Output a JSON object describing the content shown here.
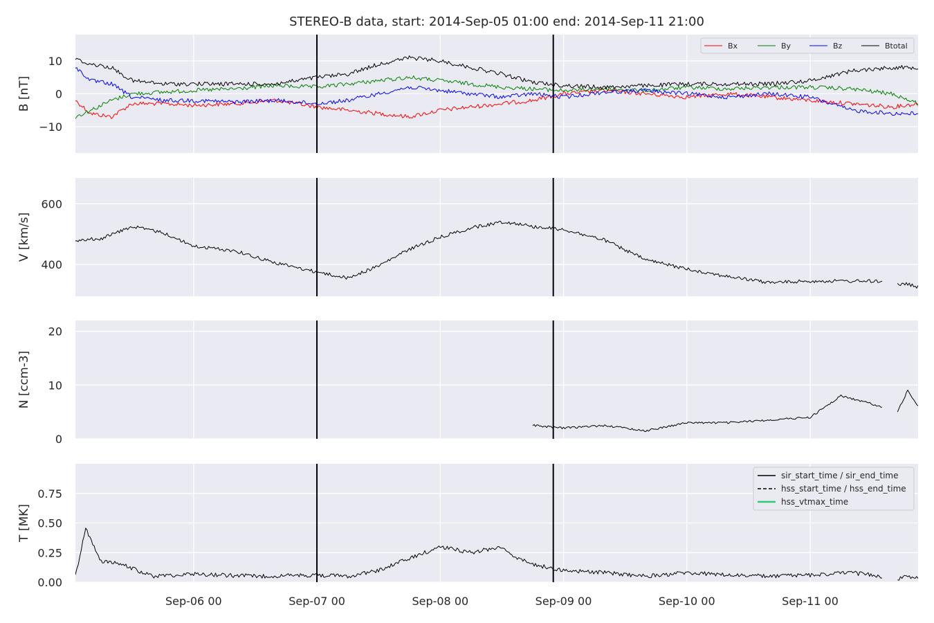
{
  "title": "STEREO-B data, start: 2014-Sep-05 01:00  end: 2014-Sep-11 21:00",
  "x_tick_labels": [
    "Sep-06 00",
    "Sep-07 00",
    "Sep-08 00",
    "Sep-09 00",
    "Sep-10 00",
    "Sep-11 00"
  ],
  "colors": {
    "panel_bg": "#eaeaf2",
    "grid": "#ffffff",
    "Bx": "#ff0000",
    "By": "#008000",
    "Bz": "#0000ff",
    "Btotal": "#000000",
    "event_lines": "#000000",
    "hss_vtmax": "#2ecc71"
  },
  "legend_top": {
    "placement": "top-right",
    "entries": [
      "Bx",
      "By",
      "Bz",
      "Btotal"
    ]
  },
  "legend_bottom": {
    "placement": "top-right",
    "entries": [
      {
        "label": "sir_start_time / sir_end_time",
        "style": "solid"
      },
      {
        "label": "hss_start_time / hss_end_time",
        "style": "dashed"
      },
      {
        "label": "hss_vtmax_time",
        "style": "solid-green"
      }
    ]
  },
  "chart_data": [
    {
      "type": "line",
      "ylabel": "B [nT]",
      "x_range": [
        "2014-09-05 01:00",
        "2014-09-11 21:00"
      ],
      "ylim": [
        -18,
        18
      ],
      "yticks": [
        -10,
        0,
        10
      ],
      "ytick_labels": [
        "−10",
        "0",
        "10"
      ],
      "grid": true,
      "vlines": [
        "2014-09-07 00:00",
        "2014-09-08 22:00"
      ],
      "series": [
        {
          "name": "Bx",
          "x": [
            "2014-09-05 01:00",
            "2014-09-05 04:00",
            "2014-09-05 08:00",
            "2014-09-05 12:00",
            "2014-09-05 18:00",
            "2014-09-06 00:00",
            "2014-09-06 08:00",
            "2014-09-06 16:00",
            "2014-09-07 00:00",
            "2014-09-07 06:00",
            "2014-09-07 12:00",
            "2014-09-07 18:00",
            "2014-09-08 00:00",
            "2014-09-08 06:00",
            "2014-09-08 12:00",
            "2014-09-08 18:00",
            "2014-09-09 00:00",
            "2014-09-09 08:00",
            "2014-09-09 16:00",
            "2014-09-10 00:00",
            "2014-09-10 08:00",
            "2014-09-10 16:00",
            "2014-09-11 00:00",
            "2014-09-11 08:00",
            "2014-09-11 16:00",
            "2014-09-11 21:00"
          ],
          "values": [
            -2,
            -6,
            -7,
            -3,
            -3,
            -3.5,
            -3,
            -2,
            -4,
            -5,
            -6,
            -7,
            -5,
            -4,
            -3,
            -2,
            0,
            1,
            0,
            -1,
            0,
            -1,
            -2,
            -3,
            -4,
            -3
          ]
        },
        {
          "name": "By",
          "x": [
            "2014-09-05 01:00",
            "2014-09-05 04:00",
            "2014-09-05 08:00",
            "2014-09-05 12:00",
            "2014-09-05 18:00",
            "2014-09-06 00:00",
            "2014-09-06 08:00",
            "2014-09-06 16:00",
            "2014-09-07 00:00",
            "2014-09-07 06:00",
            "2014-09-07 12:00",
            "2014-09-07 18:00",
            "2014-09-08 00:00",
            "2014-09-08 06:00",
            "2014-09-08 12:00",
            "2014-09-08 18:00",
            "2014-09-09 00:00",
            "2014-09-09 08:00",
            "2014-09-09 16:00",
            "2014-09-10 00:00",
            "2014-09-10 08:00",
            "2014-09-10 16:00",
            "2014-09-11 00:00",
            "2014-09-11 08:00",
            "2014-09-11 16:00",
            "2014-09-11 21:00"
          ],
          "values": [
            -7,
            -5,
            -2,
            0,
            0.5,
            1,
            1.5,
            2.5,
            2,
            3,
            4,
            5,
            4,
            3,
            2,
            1.5,
            1,
            1.5,
            1,
            2,
            1.5,
            2,
            2,
            1.5,
            0,
            -3
          ]
        },
        {
          "name": "Bz",
          "x": [
            "2014-09-05 01:00",
            "2014-09-05 04:00",
            "2014-09-05 08:00",
            "2014-09-05 12:00",
            "2014-09-05 18:00",
            "2014-09-06 00:00",
            "2014-09-06 08:00",
            "2014-09-06 16:00",
            "2014-09-07 00:00",
            "2014-09-07 06:00",
            "2014-09-07 12:00",
            "2014-09-07 18:00",
            "2014-09-08 00:00",
            "2014-09-08 06:00",
            "2014-09-08 12:00",
            "2014-09-08 18:00",
            "2014-09-09 00:00",
            "2014-09-09 08:00",
            "2014-09-09 16:00",
            "2014-09-10 00:00",
            "2014-09-10 08:00",
            "2014-09-10 16:00",
            "2014-09-11 00:00",
            "2014-09-11 08:00",
            "2014-09-11 16:00",
            "2014-09-11 21:00"
          ],
          "values": [
            8,
            4,
            3,
            -1,
            -2,
            -2,
            -2.5,
            -2,
            -3,
            -2,
            0,
            2,
            1,
            0,
            -1,
            0,
            -1,
            0.5,
            1,
            0,
            -1,
            0,
            -1,
            -5,
            -6,
            -6
          ]
        },
        {
          "name": "Btotal",
          "x": [
            "2014-09-05 01:00",
            "2014-09-05 04:00",
            "2014-09-05 08:00",
            "2014-09-05 12:00",
            "2014-09-05 18:00",
            "2014-09-06 00:00",
            "2014-09-06 08:00",
            "2014-09-06 16:00",
            "2014-09-07 00:00",
            "2014-09-07 06:00",
            "2014-09-07 12:00",
            "2014-09-07 18:00",
            "2014-09-08 00:00",
            "2014-09-08 06:00",
            "2014-09-08 12:00",
            "2014-09-08 18:00",
            "2014-09-09 00:00",
            "2014-09-09 08:00",
            "2014-09-09 16:00",
            "2014-09-10 00:00",
            "2014-09-10 08:00",
            "2014-09-10 16:00",
            "2014-09-11 00:00",
            "2014-09-11 08:00",
            "2014-09-11 16:00",
            "2014-09-11 21:00"
          ],
          "values": [
            10.5,
            9,
            8,
            4,
            3,
            3,
            3,
            3,
            5,
            6,
            9,
            11,
            10,
            8,
            6,
            3.5,
            2.5,
            2,
            2.5,
            3,
            3,
            3,
            4,
            7,
            8,
            8
          ]
        }
      ]
    },
    {
      "type": "line",
      "ylabel": "V [km/s]",
      "x_range": [
        "2014-09-05 01:00",
        "2014-09-11 21:00"
      ],
      "ylim": [
        295,
        685
      ],
      "yticks": [
        400,
        600
      ],
      "ytick_labels": [
        "400",
        "600"
      ],
      "grid": true,
      "vlines": [
        "2014-09-07 00:00",
        "2014-09-08 22:00"
      ],
      "series": [
        {
          "name": "V",
          "x": [
            "2014-09-05 01:00",
            "2014-09-05 06:00",
            "2014-09-05 12:00",
            "2014-09-05 18:00",
            "2014-09-06 00:00",
            "2014-09-06 08:00",
            "2014-09-06 16:00",
            "2014-09-07 00:00",
            "2014-09-07 06:00",
            "2014-09-07 12:00",
            "2014-09-07 18:00",
            "2014-09-08 00:00",
            "2014-09-08 06:00",
            "2014-09-08 12:00",
            "2014-09-08 15:00",
            "2014-09-08 18:00",
            "2014-09-09 00:00",
            "2014-09-09 08:00",
            "2014-09-09 16:00",
            "2014-09-10 00:00",
            "2014-09-10 08:00",
            "2014-09-10 16:00",
            "2014-09-11 00:00",
            "2014-09-11 08:00",
            "2014-09-11 14:00"
          ],
          "values": [
            480,
            485,
            525,
            505,
            460,
            445,
            405,
            375,
            355,
            395,
            450,
            490,
            520,
            540,
            535,
            525,
            515,
            480,
            415,
            385,
            360,
            340,
            345,
            345,
            345
          ]
        },
        {
          "name": "V (tail)",
          "x": [
            "2014-09-11 17:00",
            "2014-09-11 19:00",
            "2014-09-11 21:00"
          ],
          "values": [
            335,
            335,
            325
          ]
        }
      ]
    },
    {
      "type": "line",
      "ylabel": "N [ccm-3]",
      "x_range": [
        "2014-09-05 01:00",
        "2014-09-11 21:00"
      ],
      "ylim": [
        0,
        22
      ],
      "yticks": [
        0,
        10,
        20
      ],
      "ytick_labels": [
        "0",
        "10",
        "20"
      ],
      "grid": true,
      "vlines": [
        "2014-09-07 00:00",
        "2014-09-08 22:00"
      ],
      "series": [
        {
          "name": "N",
          "x": [
            "2014-09-08 18:00",
            "2014-09-09 00:00",
            "2014-09-09 08:00",
            "2014-09-09 16:00",
            "2014-09-10 00:00",
            "2014-09-10 08:00",
            "2014-09-10 16:00",
            "2014-09-11 00:00",
            "2014-09-11 06:00",
            "2014-09-11 14:00"
          ],
          "values": [
            2.5,
            2,
            2.5,
            1.5,
            3,
            3,
            3.5,
            4,
            8,
            6
          ]
        },
        {
          "name": "N (tail)",
          "x": [
            "2014-09-11 17:00",
            "2014-09-11 19:00",
            "2014-09-11 21:00"
          ],
          "values": [
            5,
            9,
            6
          ]
        }
      ]
    },
    {
      "type": "line",
      "ylabel": "T [MK]",
      "x_range": [
        "2014-09-05 01:00",
        "2014-09-11 21:00"
      ],
      "ylim": [
        0,
        1.0
      ],
      "yticks": [
        0.0,
        0.25,
        0.5,
        0.75
      ],
      "ytick_labels": [
        "0.00",
        "0.25",
        "0.50",
        "0.75"
      ],
      "grid": true,
      "vlines": [
        "2014-09-07 00:00",
        "2014-09-08 22:00"
      ],
      "series": [
        {
          "name": "T",
          "x": [
            "2014-09-05 01:00",
            "2014-09-05 03:00",
            "2014-09-05 06:00",
            "2014-09-05 10:00",
            "2014-09-05 16:00",
            "2014-09-06 00:00",
            "2014-09-06 12:00",
            "2014-09-07 00:00",
            "2014-09-07 06:00",
            "2014-09-07 12:00",
            "2014-09-07 18:00",
            "2014-09-08 00:00",
            "2014-09-08 06:00",
            "2014-09-08 12:00",
            "2014-09-08 15:00",
            "2014-09-08 18:00",
            "2014-09-09 00:00",
            "2014-09-09 08:00",
            "2014-09-09 16:00",
            "2014-09-10 00:00",
            "2014-09-10 08:00",
            "2014-09-10 16:00",
            "2014-09-11 00:00",
            "2014-09-11 08:00",
            "2014-09-11 14:00"
          ],
          "values": [
            0.05,
            0.45,
            0.18,
            0.15,
            0.05,
            0.07,
            0.05,
            0.06,
            0.05,
            0.1,
            0.2,
            0.3,
            0.25,
            0.3,
            0.2,
            0.15,
            0.1,
            0.08,
            0.05,
            0.08,
            0.06,
            0.05,
            0.06,
            0.08,
            0.05
          ]
        },
        {
          "name": "T (tail)",
          "x": [
            "2014-09-11 17:00",
            "2014-09-11 19:00",
            "2014-09-11 21:00"
          ],
          "values": [
            0.03,
            0.05,
            0.04
          ]
        }
      ]
    }
  ]
}
